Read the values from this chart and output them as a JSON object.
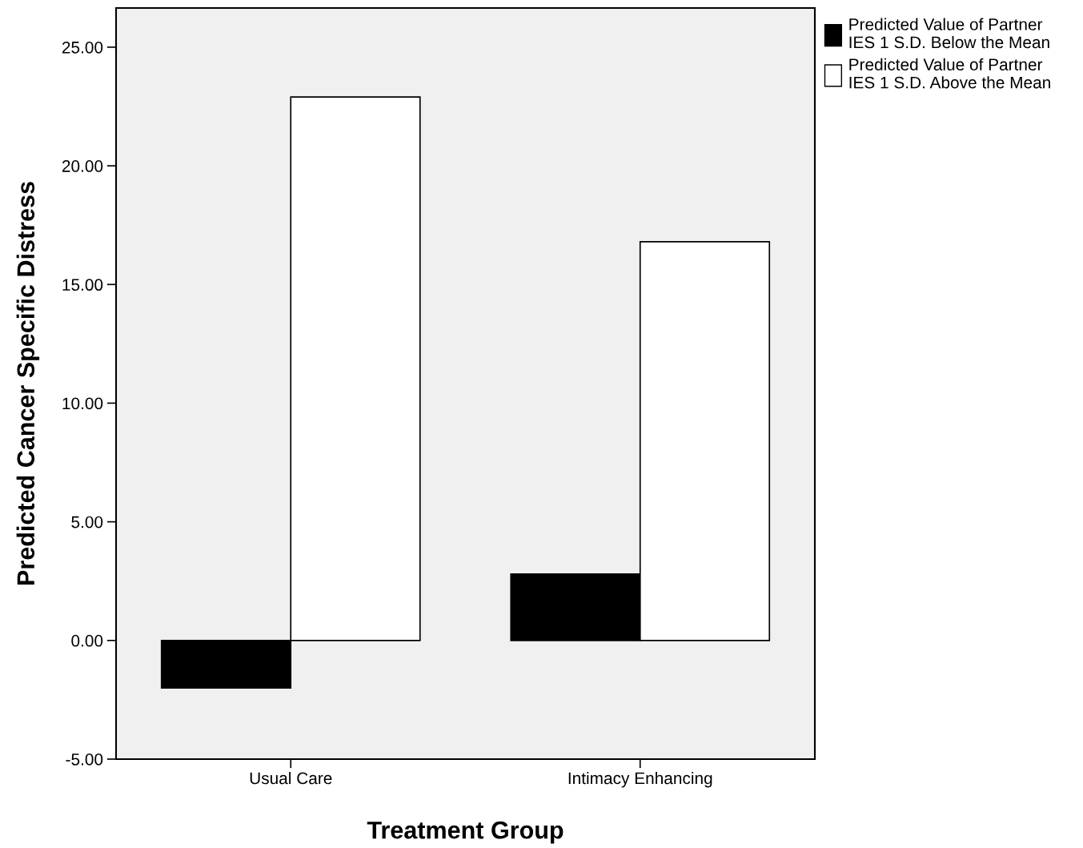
{
  "chart_data": {
    "type": "bar",
    "xlabel": "Treatment Group",
    "ylabel": "Predicted Cancer Specific Distress",
    "categories": [
      "Usual Care",
      "Intimacy Enhancing"
    ],
    "series": [
      {
        "name": "Predicted Value of Partner\nIES 1 S.D. Below the Mean",
        "color": "#000000",
        "values": [
          -2.0,
          2.8
        ]
      },
      {
        "name": "Predicted Value of Partner\nIES 1 S.D. Above the Mean",
        "color": "#ffffff",
        "values": [
          22.9,
          16.8
        ]
      }
    ],
    "ylim": [
      -5,
      26.65
    ],
    "yticks": [
      {
        "value": -5,
        "label": "-5.00"
      },
      {
        "value": 0,
        "label": "0.00"
      },
      {
        "value": 5,
        "label": "5.00"
      },
      {
        "value": 10,
        "label": "10.00"
      },
      {
        "value": 15,
        "label": "15.00"
      },
      {
        "value": 20,
        "label": "20.00"
      },
      {
        "value": 25,
        "label": "25.00"
      }
    ],
    "grid": false,
    "legend": "top right"
  }
}
